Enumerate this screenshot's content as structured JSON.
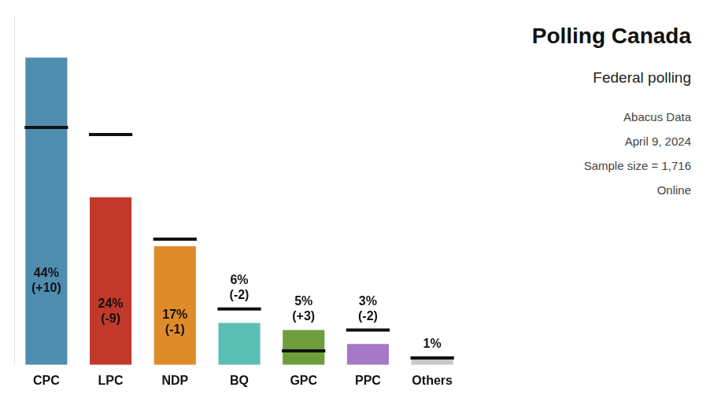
{
  "chart_data": {
    "type": "bar",
    "title": "Polling Canada",
    "subtitle": "Federal polling",
    "annotations": [
      "Abacus Data",
      "April 9, 2024",
      "Sample size = 1,716",
      "Online"
    ],
    "categories": [
      "CPC",
      "LPC",
      "NDP",
      "BQ",
      "GPC",
      "PPC",
      "Others"
    ],
    "values": [
      44,
      24,
      17,
      6,
      5,
      3,
      1
    ],
    "value_labels": [
      "44%\n(+10)",
      "24%\n(-9)",
      "17%\n(-1)",
      "6%\n(-2)",
      "5%\n(+3)",
      "3%\n(-2)",
      "1%"
    ],
    "colors": [
      "#4f8db0",
      "#c0392b",
      "#e08b2a",
      "#5bbfb5",
      "#6e9e3c",
      "#a678c8",
      "#c8c8c8"
    ],
    "reference_lines": {
      "values": [
        34,
        33,
        18,
        8,
        2,
        5,
        1
      ],
      "color": "#111111"
    },
    "ylim": [
      0,
      50
    ],
    "grid": false,
    "tick_labels": "x",
    "data_labels": true
  }
}
